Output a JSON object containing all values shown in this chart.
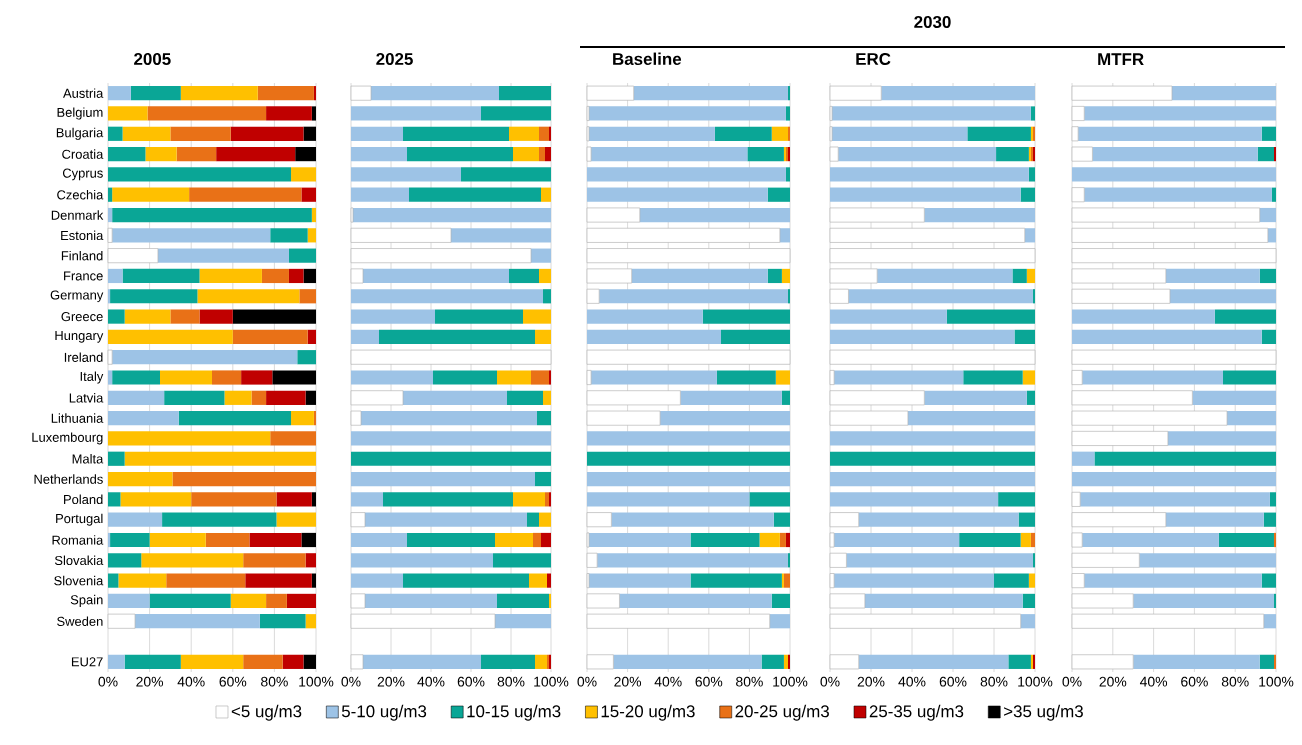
{
  "chart_data": [
    {
      "type": "bar",
      "orientation": "horizontal",
      "stacked": true,
      "title": "2005",
      "grid": "x",
      "legend": "bottom",
      "categories": [
        "Austria",
        "Belgium",
        "Bulgaria",
        "Croatia",
        "Cyprus",
        "Czechia",
        "Denmark",
        "Estonia",
        "Finland",
        "France",
        "Germany",
        "Greece",
        "Hungary",
        "Ireland",
        "Italy",
        "Latvia",
        "Lithuania",
        "Luxembourg",
        "Malta",
        "Netherlands",
        "Poland",
        "Portugal",
        "Romania",
        "Slovakia",
        "Slovenia",
        "Spain",
        "Sweden",
        null,
        "EU27"
      ],
      "xlim": [
        0,
        100
      ],
      "xticks": [
        {
          "value": 0,
          "label": "0%"
        },
        {
          "value": 20,
          "label": "20%"
        },
        {
          "value": 40,
          "label": "40%"
        },
        {
          "value": 60,
          "label": "60%"
        },
        {
          "value": 80,
          "label": "80%"
        },
        {
          "value": 100,
          "label": "100%"
        }
      ],
      "series": [
        {
          "name": "<5 ug/m3",
          "color": "#ffffff",
          "values": [
            0,
            0,
            0,
            0,
            0,
            0,
            0,
            2,
            24,
            0,
            0,
            0,
            0,
            2,
            0,
            0,
            0,
            0,
            0,
            0,
            0,
            0,
            0,
            0,
            0,
            0,
            13,
            null,
            0
          ]
        },
        {
          "name": "5-10 ug/m3",
          "color": "#9dc3e6",
          "values": [
            11,
            0,
            0,
            0,
            0,
            0,
            2,
            76,
            63,
            7,
            1,
            0,
            0,
            89,
            2,
            27,
            34,
            0,
            0,
            0,
            0,
            26,
            1,
            0,
            0,
            20,
            60,
            null,
            8
          ]
        },
        {
          "name": "10-15 ug/m3",
          "color": "#0aa696",
          "values": [
            24,
            0,
            7,
            18,
            88,
            2,
            96,
            18,
            13,
            37,
            42,
            8,
            0,
            9,
            23,
            29,
            54,
            0,
            8,
            0,
            6,
            55,
            19,
            16,
            5,
            39,
            22,
            null,
            27
          ]
        },
        {
          "name": "15-20 ug/m3",
          "color": "#ffc000",
          "values": [
            37,
            19,
            23,
            15,
            12,
            37,
            2,
            4,
            0,
            30,
            49,
            22,
            60,
            0,
            25,
            13,
            11,
            78,
            92,
            31,
            34,
            19,
            27,
            49,
            23,
            17,
            5,
            null,
            30
          ]
        },
        {
          "name": "20-25 ug/m3",
          "color": "#e97117",
          "values": [
            27,
            57,
            29,
            19,
            0,
            54,
            0,
            0,
            0,
            13,
            8,
            14,
            36,
            0,
            14,
            7,
            1,
            22,
            0,
            69,
            41,
            0,
            21,
            30,
            38,
            10,
            0,
            null,
            19
          ]
        },
        {
          "name": "25-35 ug/m3",
          "color": "#c00000",
          "values": [
            1,
            22,
            35,
            38,
            0,
            7,
            0,
            0,
            0,
            7,
            0,
            16,
            4,
            0,
            15,
            19,
            0,
            0,
            0,
            0,
            17,
            0,
            25,
            5,
            32,
            14,
            0,
            null,
            10
          ]
        },
        {
          "name": ">35 ug/m3",
          "color": "#000000",
          "values": [
            0,
            2,
            6,
            10,
            0,
            0,
            0,
            0,
            0,
            6,
            0,
            40,
            0,
            0,
            21,
            5,
            0,
            0,
            0,
            0,
            2,
            0,
            7,
            0,
            2,
            0,
            0,
            null,
            6
          ]
        }
      ]
    },
    {
      "type": "bar",
      "orientation": "horizontal",
      "stacked": true,
      "title": "2025",
      "grid": "x",
      "tick_labels": "x",
      "categories": [
        null,
        null,
        null,
        null,
        null,
        null,
        null,
        null,
        null,
        null,
        null,
        null,
        null,
        null,
        null,
        null,
        null,
        null,
        null,
        null,
        null,
        null,
        null,
        null,
        null,
        null,
        null,
        null,
        null
      ],
      "xlim": [
        0,
        100
      ],
      "xticks": [
        {
          "value": 0,
          "label": "0%"
        },
        {
          "value": 20,
          "label": "20%"
        },
        {
          "value": 40,
          "label": "40%"
        },
        {
          "value": 60,
          "label": "60%"
        },
        {
          "value": 80,
          "label": "80%"
        },
        {
          "value": 100,
          "label": "100%"
        }
      ],
      "series": [
        {
          "color": "#ffffff",
          "values": [
            10,
            0,
            0,
            0,
            0,
            0,
            1,
            50,
            90,
            6,
            0,
            0,
            0,
            100,
            0,
            26,
            5,
            0,
            0,
            0,
            0,
            7,
            0,
            0,
            0,
            7,
            72,
            null,
            6
          ]
        },
        {
          "color": "#9dc3e6",
          "values": [
            64,
            65,
            26,
            28,
            55,
            29,
            99,
            50,
            10,
            73,
            96,
            42,
            14,
            0,
            41,
            52,
            88,
            100,
            0,
            92,
            16,
            81,
            28,
            71,
            26,
            66,
            28,
            null,
            59
          ]
        },
        {
          "color": "#0aa696",
          "values": [
            26,
            35,
            53,
            53,
            45,
            66,
            0,
            0,
            0,
            15,
            4,
            44,
            78,
            0,
            32,
            18,
            7,
            0,
            100,
            8,
            65,
            6,
            44,
            29,
            63,
            26,
            0,
            null,
            27
          ]
        },
        {
          "color": "#ffc000",
          "values": [
            0,
            0,
            15,
            13,
            0,
            5,
            0,
            0,
            0,
            6,
            0,
            14,
            8,
            0,
            17,
            4,
            0,
            0,
            0,
            0,
            16,
            6,
            19,
            0,
            9,
            1,
            0,
            null,
            6
          ]
        },
        {
          "color": "#e97117",
          "values": [
            0,
            0,
            5,
            3,
            0,
            0,
            0,
            0,
            0,
            0,
            0,
            0,
            0,
            0,
            9,
            0,
            0,
            0,
            0,
            0,
            2,
            0,
            4,
            0,
            0,
            0,
            0,
            null,
            1
          ]
        },
        {
          "color": "#c00000",
          "values": [
            0,
            0,
            1,
            3,
            0,
            0,
            0,
            0,
            0,
            0,
            0,
            0,
            0,
            0,
            1,
            0,
            0,
            0,
            0,
            0,
            1,
            0,
            5,
            0,
            2,
            0,
            0,
            null,
            1
          ]
        },
        {
          "color": "#000000",
          "values": [
            0,
            0,
            0,
            0,
            0,
            0,
            0,
            0,
            0,
            0,
            0,
            0,
            0,
            0,
            0,
            0,
            0,
            0,
            0,
            0,
            0,
            0,
            0,
            0,
            0,
            0,
            0,
            null,
            0
          ]
        }
      ]
    },
    {
      "type": "bar",
      "orientation": "horizontal",
      "stacked": true,
      "title": "Baseline",
      "grid": "x",
      "tick_labels": "x",
      "annotations": [
        "2030"
      ],
      "categories": [
        null,
        null,
        null,
        null,
        null,
        null,
        null,
        null,
        null,
        null,
        null,
        null,
        null,
        null,
        null,
        null,
        null,
        null,
        null,
        null,
        null,
        null,
        null,
        null,
        null,
        null,
        null,
        null,
        null
      ],
      "xlim": [
        0,
        100
      ],
      "xticks": [
        {
          "value": 0,
          "label": "0%"
        },
        {
          "value": 20,
          "label": "20%"
        },
        {
          "value": 40,
          "label": "40%"
        },
        {
          "value": 60,
          "label": "60%"
        },
        {
          "value": 80,
          "label": "80%"
        },
        {
          "value": 100,
          "label": "100%"
        }
      ],
      "series": [
        {
          "color": "#ffffff",
          "values": [
            23,
            1,
            1,
            2,
            0,
            0,
            26,
            95,
            100,
            22,
            6,
            0,
            0,
            100,
            2,
            46,
            36,
            0,
            0,
            0,
            0,
            12,
            1,
            5,
            1,
            16,
            90,
            null,
            13
          ]
        },
        {
          "color": "#9dc3e6",
          "values": [
            76,
            97,
            62,
            77,
            98,
            89,
            74,
            5,
            0,
            67,
            93,
            57,
            66,
            0,
            62,
            50,
            64,
            100,
            0,
            100,
            80,
            80,
            50,
            94,
            50,
            75,
            10,
            null,
            73
          ]
        },
        {
          "color": "#0aa696",
          "values": [
            1,
            2,
            28,
            18,
            2,
            11,
            0,
            0,
            0,
            7,
            1,
            43,
            34,
            0,
            29,
            4,
            0,
            0,
            100,
            0,
            20,
            8,
            34,
            1,
            45,
            9,
            0,
            null,
            11
          ]
        },
        {
          "color": "#ffc000",
          "values": [
            0,
            0,
            8,
            1,
            0,
            0,
            0,
            0,
            0,
            4,
            0,
            0,
            0,
            0,
            7,
            0,
            0,
            0,
            0,
            0,
            0,
            0,
            10,
            0,
            1,
            0,
            0,
            null,
            2
          ]
        },
        {
          "color": "#e97117",
          "values": [
            0,
            0,
            1,
            1,
            0,
            0,
            0,
            0,
            0,
            0,
            0,
            0,
            0,
            0,
            0,
            0,
            0,
            0,
            0,
            0,
            0,
            0,
            3,
            0,
            3,
            0,
            0,
            null,
            0
          ]
        },
        {
          "color": "#c00000",
          "values": [
            0,
            0,
            0,
            1,
            0,
            0,
            0,
            0,
            0,
            0,
            0,
            0,
            0,
            0,
            0,
            0,
            0,
            0,
            0,
            0,
            0,
            0,
            2,
            0,
            0,
            0,
            0,
            null,
            1
          ]
        },
        {
          "color": "#000000",
          "values": [
            0,
            0,
            0,
            0,
            0,
            0,
            0,
            0,
            0,
            0,
            0,
            0,
            0,
            0,
            0,
            0,
            0,
            0,
            0,
            0,
            0,
            0,
            0,
            0,
            0,
            0,
            0,
            null,
            0
          ]
        }
      ]
    },
    {
      "type": "bar",
      "orientation": "horizontal",
      "stacked": true,
      "title": "ERC",
      "grid": "x",
      "tick_labels": "x",
      "categories": [
        null,
        null,
        null,
        null,
        null,
        null,
        null,
        null,
        null,
        null,
        null,
        null,
        null,
        null,
        null,
        null,
        null,
        null,
        null,
        null,
        null,
        null,
        null,
        null,
        null,
        null,
        null,
        null,
        null
      ],
      "xlim": [
        0,
        100
      ],
      "xticks": [
        {
          "value": 0,
          "label": "0%"
        },
        {
          "value": 20,
          "label": "20%"
        },
        {
          "value": 40,
          "label": "40%"
        },
        {
          "value": 60,
          "label": "60%"
        },
        {
          "value": 80,
          "label": "80%"
        },
        {
          "value": 100,
          "label": "100%"
        }
      ],
      "series": [
        {
          "color": "#ffffff",
          "values": [
            25,
            1,
            1,
            4,
            0,
            0,
            46,
            95,
            100,
            23,
            9,
            0,
            0,
            100,
            2,
            46,
            38,
            0,
            0,
            0,
            0,
            14,
            2,
            8,
            2,
            17,
            93,
            null,
            14
          ]
        },
        {
          "color": "#9dc3e6",
          "values": [
            75,
            97,
            66,
            77,
            97,
            93,
            54,
            5,
            0,
            66,
            90,
            57,
            90,
            0,
            63,
            50,
            62,
            100,
            0,
            100,
            82,
            78,
            61,
            91,
            78,
            77,
            7,
            null,
            73
          ]
        },
        {
          "color": "#0aa696",
          "values": [
            0,
            2,
            31,
            16,
            3,
            7,
            0,
            0,
            0,
            7,
            1,
            43,
            10,
            0,
            29,
            4,
            0,
            0,
            100,
            0,
            18,
            8,
            30,
            1,
            17,
            6,
            0,
            null,
            11
          ]
        },
        {
          "color": "#ffc000",
          "values": [
            0,
            0,
            1,
            1,
            0,
            0,
            0,
            0,
            0,
            4,
            0,
            0,
            0,
            0,
            6,
            0,
            0,
            0,
            0,
            0,
            0,
            0,
            5,
            0,
            3,
            0,
            0,
            null,
            1
          ]
        },
        {
          "color": "#e97117",
          "values": [
            0,
            0,
            1,
            1,
            0,
            0,
            0,
            0,
            0,
            0,
            0,
            0,
            0,
            0,
            0,
            0,
            0,
            0,
            0,
            0,
            0,
            0,
            2,
            0,
            0,
            0,
            0,
            null,
            0
          ]
        },
        {
          "color": "#c00000",
          "values": [
            0,
            0,
            0,
            1,
            0,
            0,
            0,
            0,
            0,
            0,
            0,
            0,
            0,
            0,
            0,
            0,
            0,
            0,
            0,
            0,
            0,
            0,
            0,
            0,
            0,
            0,
            0,
            null,
            1
          ]
        },
        {
          "color": "#000000",
          "values": [
            0,
            0,
            0,
            0,
            0,
            0,
            0,
            0,
            0,
            0,
            0,
            0,
            0,
            0,
            0,
            0,
            0,
            0,
            0,
            0,
            0,
            0,
            0,
            0,
            0,
            0,
            0,
            null,
            0
          ]
        }
      ]
    },
    {
      "type": "bar",
      "orientation": "horizontal",
      "stacked": true,
      "title": "MTFR",
      "grid": "x",
      "tick_labels": "x",
      "categories": [
        null,
        null,
        null,
        null,
        null,
        null,
        null,
        null,
        null,
        null,
        null,
        null,
        null,
        null,
        null,
        null,
        null,
        null,
        null,
        null,
        null,
        null,
        null,
        null,
        null,
        null,
        null,
        null,
        null
      ],
      "xlim": [
        0,
        100
      ],
      "xticks": [
        {
          "value": 0,
          "label": "0%"
        },
        {
          "value": 20,
          "label": "20%"
        },
        {
          "value": 40,
          "label": "40%"
        },
        {
          "value": 60,
          "label": "60%"
        },
        {
          "value": 80,
          "label": "80%"
        },
        {
          "value": 100,
          "label": "100%"
        }
      ],
      "series": [
        {
          "color": "#ffffff",
          "values": [
            49,
            6,
            3,
            10,
            0,
            6,
            92,
            96,
            100,
            46,
            48,
            0,
            0,
            100,
            5,
            59,
            76,
            47,
            0,
            0,
            4,
            46,
            5,
            33,
            6,
            30,
            94,
            null,
            30
          ]
        },
        {
          "color": "#9dc3e6",
          "values": [
            51,
            94,
            90,
            81,
            100,
            92,
            8,
            4,
            0,
            46,
            52,
            70,
            93,
            0,
            69,
            41,
            24,
            53,
            11,
            100,
            93,
            48,
            67,
            67,
            87,
            69,
            6,
            null,
            62
          ]
        },
        {
          "color": "#0aa696",
          "values": [
            0,
            0,
            7,
            8,
            0,
            2,
            0,
            0,
            0,
            8,
            0,
            30,
            7,
            0,
            26,
            0,
            0,
            0,
            89,
            0,
            3,
            6,
            27,
            0,
            7,
            1,
            0,
            null,
            7
          ]
        },
        {
          "color": "#ffc000",
          "values": [
            0,
            0,
            0,
            0,
            0,
            0,
            0,
            0,
            0,
            0,
            0,
            0,
            0,
            0,
            0,
            0,
            0,
            0,
            0,
            0,
            0,
            0,
            0,
            0,
            0,
            0,
            0,
            null,
            0
          ]
        },
        {
          "color": "#e97117",
          "values": [
            0,
            0,
            0,
            0,
            0,
            0,
            0,
            0,
            0,
            0,
            0,
            0,
            0,
            0,
            0,
            0,
            0,
            0,
            0,
            0,
            0,
            0,
            1,
            0,
            0,
            0,
            0,
            null,
            1
          ]
        },
        {
          "color": "#c00000",
          "values": [
            0,
            0,
            0,
            1,
            0,
            0,
            0,
            0,
            0,
            0,
            0,
            0,
            0,
            0,
            0,
            0,
            0,
            0,
            0,
            0,
            0,
            0,
            0,
            0,
            0,
            0,
            0,
            null,
            0
          ]
        },
        {
          "color": "#000000",
          "values": [
            0,
            0,
            0,
            0,
            0,
            0,
            0,
            0,
            0,
            0,
            0,
            0,
            0,
            0,
            0,
            0,
            0,
            0,
            0,
            0,
            0,
            0,
            0,
            0,
            0,
            0,
            0,
            null,
            0
          ]
        }
      ]
    }
  ]
}
